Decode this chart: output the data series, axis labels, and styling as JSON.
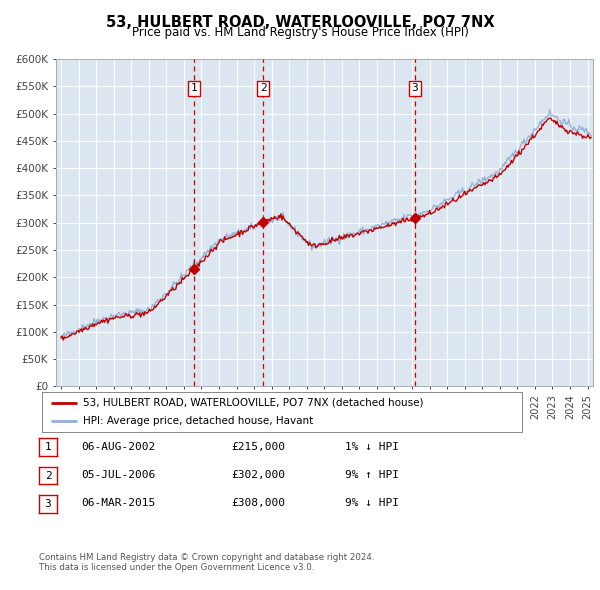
{
  "title": "53, HULBERT ROAD, WATERLOOVILLE, PO7 7NX",
  "subtitle": "Price paid vs. HM Land Registry's House Price Index (HPI)",
  "ylim": [
    0,
    600000
  ],
  "yticks": [
    0,
    50000,
    100000,
    150000,
    200000,
    250000,
    300000,
    350000,
    400000,
    450000,
    500000,
    550000,
    600000
  ],
  "ytick_labels": [
    "£0",
    "£50K",
    "£100K",
    "£150K",
    "£200K",
    "£250K",
    "£300K",
    "£350K",
    "£400K",
    "£450K",
    "£500K",
    "£550K",
    "£600K"
  ],
  "xlim": [
    1994.7,
    2025.3
  ],
  "plot_bg_color": "#dce6f1",
  "grid_color": "#ffffff",
  "hpi_line_color": "#92afd3",
  "price_line_color": "#c00000",
  "sale_marker_color": "#c00000",
  "vline_color": "#cc0000",
  "legend_label_price": "53, HULBERT ROAD, WATERLOOVILLE, PO7 7NX (detached house)",
  "legend_label_hpi": "HPI: Average price, detached house, Havant",
  "sales": [
    {
      "date_num": 2002.59,
      "price": 215000,
      "label": "1"
    },
    {
      "date_num": 2006.51,
      "price": 302000,
      "label": "2"
    },
    {
      "date_num": 2015.17,
      "price": 308000,
      "label": "3"
    }
  ],
  "footer_line1": "Contains HM Land Registry data © Crown copyright and database right 2024.",
  "footer_line2": "This data is licensed under the Open Government Licence v3.0.",
  "table_data": [
    {
      "num": "1",
      "date": "06-AUG-2002",
      "price": "£215,000",
      "hpi": "1% ↓ HPI"
    },
    {
      "num": "2",
      "date": "05-JUL-2006",
      "price": "£302,000",
      "hpi": "9% ↑ HPI"
    },
    {
      "num": "3",
      "date": "06-MAR-2015",
      "price": "£308,000",
      "hpi": "9% ↓ HPI"
    }
  ]
}
